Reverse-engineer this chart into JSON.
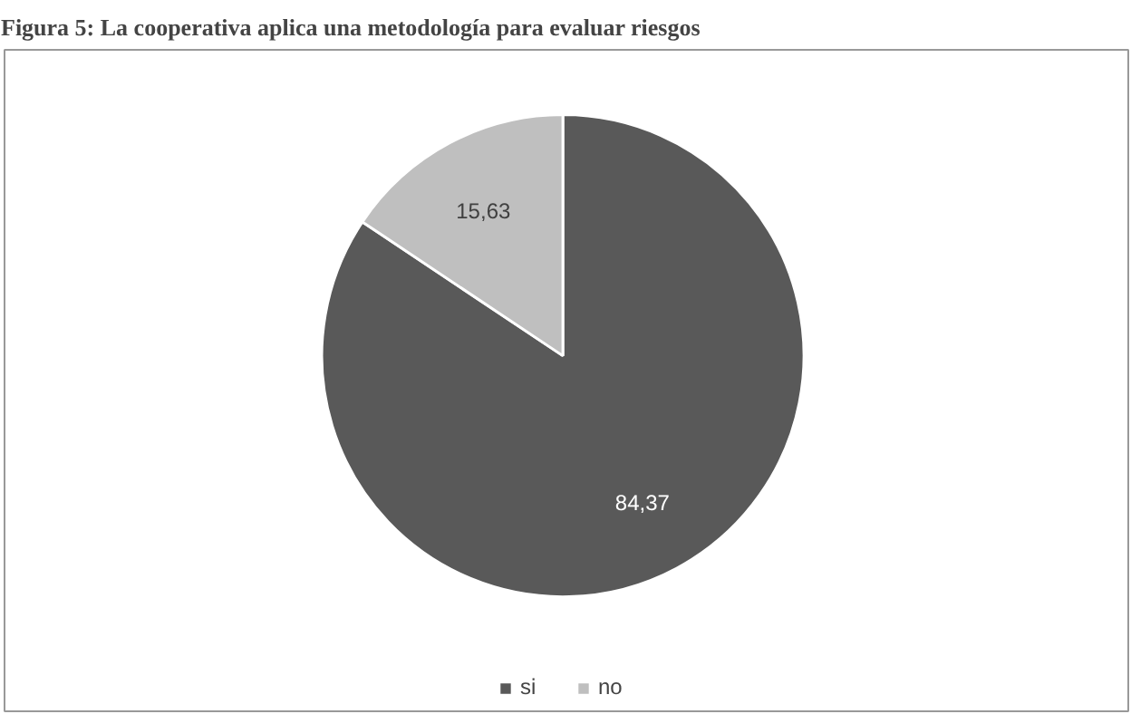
{
  "chart_data": {
    "type": "pie",
    "title": "Figura 5: La cooperativa aplica una metodología para evaluar riesgos",
    "categories": [
      "si",
      "no"
    ],
    "values": [
      84.37,
      15.63
    ],
    "colors": [
      "#595959",
      "#bfbfbf"
    ],
    "value_labels": [
      "84,37",
      "15,63"
    ],
    "legend": "bottom"
  }
}
